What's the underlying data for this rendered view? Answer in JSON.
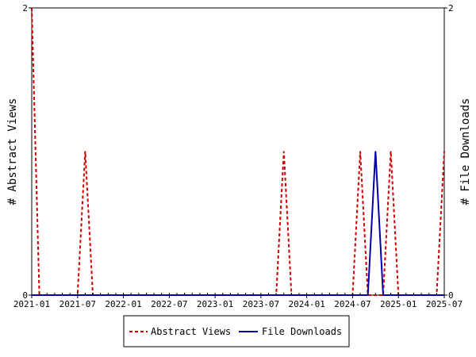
{
  "chart_data": {
    "type": "line",
    "x_axis": {
      "ticks": [
        "2021-01",
        "2021-07",
        "2022-01",
        "2022-07",
        "2023-01",
        "2023-07",
        "2024-01",
        "2024-07",
        "2025-01",
        "2025-07"
      ],
      "range": [
        "2021-01",
        "2025-07"
      ]
    },
    "y_left": {
      "label": "# Abstract Views",
      "range": [
        0,
        2
      ],
      "ticks": [
        "0",
        "2"
      ]
    },
    "y_right": {
      "label": "# File Downloads",
      "range": [
        0,
        2
      ],
      "ticks": [
        "0",
        "2"
      ]
    },
    "grid": false,
    "legend_position": "bottom",
    "series": [
      {
        "name": "Abstract Views",
        "axis": "left",
        "color": "#cc0000",
        "style": "dashed",
        "points": [
          {
            "x": "2021-01",
            "y": 2
          },
          {
            "x": "2021-08",
            "y": 1
          },
          {
            "x": "2023-10",
            "y": 1
          },
          {
            "x": "2024-08",
            "y": 1
          },
          {
            "x": "2024-12",
            "y": 1
          },
          {
            "x": "2025-07",
            "y": 1
          }
        ]
      },
      {
        "name": "File Downloads",
        "axis": "right",
        "color": "#0000aa",
        "style": "solid",
        "points": [
          {
            "x": "2024-10",
            "y": 1
          }
        ]
      }
    ]
  }
}
